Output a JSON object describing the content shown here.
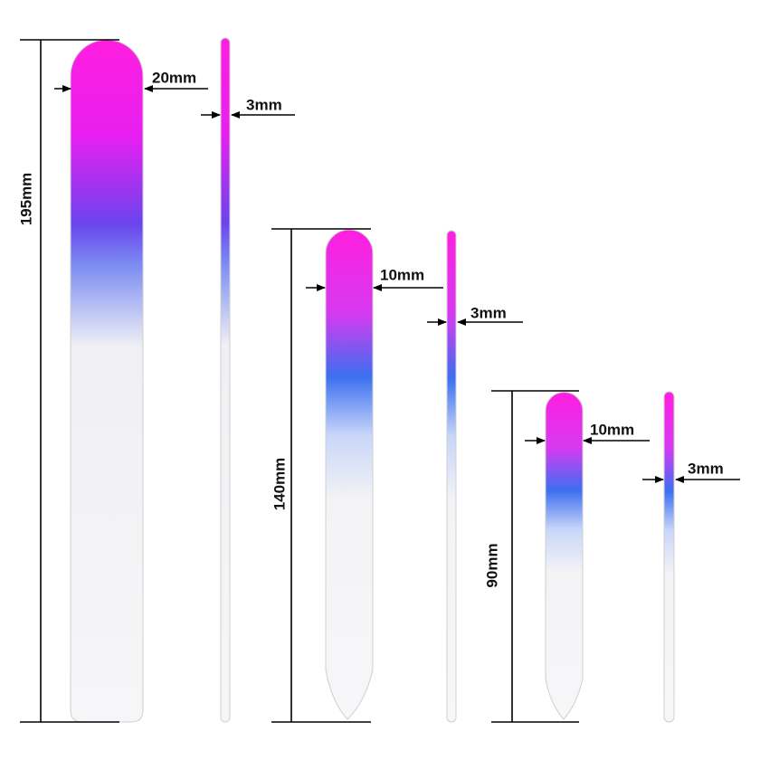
{
  "files": [
    {
      "length": "195mm",
      "width": "20mm",
      "thickness": "3mm"
    },
    {
      "length": "140mm",
      "width": "10mm",
      "thickness": "3mm"
    },
    {
      "length": "90mm",
      "width": "10mm",
      "thickness": "3mm"
    }
  ]
}
